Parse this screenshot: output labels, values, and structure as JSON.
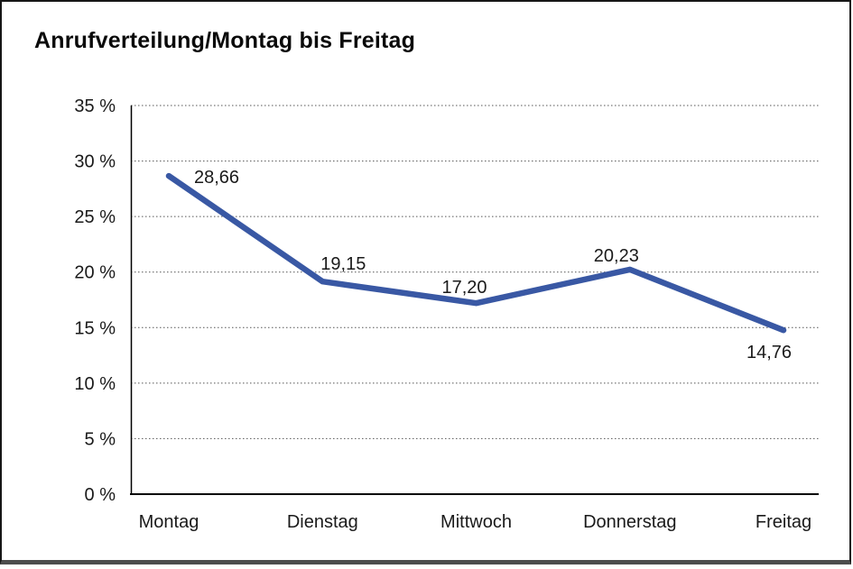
{
  "title": "Anrufverteilung/Montag bis Freitag",
  "chart_data": {
    "type": "line",
    "title": "Anrufverteilung/Montag bis Freitag",
    "categories": [
      "Montag",
      "Dienstag",
      "Mittwoch",
      "Donnerstag",
      "Freitag"
    ],
    "values": [
      28.66,
      19.15,
      17.2,
      20.23,
      14.76
    ],
    "value_labels": [
      "28,66",
      "19,15",
      "17,20",
      "20,23",
      "14,76"
    ],
    "xlabel": "",
    "ylabel": "",
    "ylim": [
      0,
      35
    ],
    "y_ticks": [
      0,
      5,
      10,
      15,
      20,
      25,
      30,
      35
    ],
    "y_tick_labels": [
      "0 %",
      "5 %",
      "10 %",
      "15 %",
      "20 %",
      "25 %",
      "30 %",
      "35 %"
    ],
    "grid": "horizontal-dotted",
    "legend": "none"
  },
  "colors": {
    "line": "#3958a4",
    "text": "#1a1a1a",
    "grid": "#555555",
    "axis": "#000000",
    "frame_border": "#161616",
    "frame_bottom": "#4d4d4d",
    "background": "#ffffff"
  }
}
